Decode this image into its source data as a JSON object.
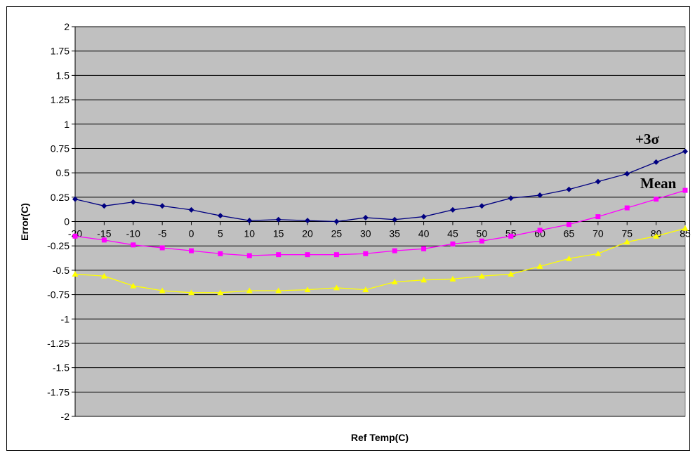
{
  "chart_data": {
    "type": "line",
    "xlabel": "Ref Temp(C)",
    "ylabel": "Error(C)",
    "ylim": [
      -2,
      2
    ],
    "yticks": [
      "2",
      "1.75",
      "1.5",
      "1.25",
      "1",
      "0.75",
      "0.5",
      "0.25",
      "0",
      "-0.25",
      "-0.5",
      "-0.75",
      "-1",
      "-1.25",
      "-1.5",
      "-1.75",
      "-2"
    ],
    "x": [
      "-20",
      "-15",
      "-10",
      "-5",
      "0",
      "5",
      "10",
      "15",
      "20",
      "25",
      "30",
      "35",
      "40",
      "45",
      "50",
      "55",
      "60",
      "65",
      "70",
      "75",
      "80",
      "85"
    ],
    "grid": true,
    "plot_background": "#c0c0c0",
    "series": [
      {
        "color": "#000080",
        "marker": "diamond",
        "values": [
          0.23,
          0.16,
          0.2,
          0.16,
          0.12,
          0.06,
          0.01,
          0.02,
          0.01,
          0.0,
          0.04,
          0.02,
          0.05,
          0.12,
          0.16,
          0.24,
          0.27,
          0.33,
          0.41,
          0.49,
          0.61,
          0.72
        ]
      },
      {
        "color": "#ff00ff",
        "marker": "square",
        "values": [
          -0.15,
          -0.19,
          -0.24,
          -0.27,
          -0.3,
          -0.33,
          -0.35,
          -0.34,
          -0.34,
          -0.34,
          -0.33,
          -0.3,
          -0.28,
          -0.23,
          -0.2,
          -0.15,
          -0.09,
          -0.03,
          0.05,
          0.14,
          0.23,
          0.32
        ]
      },
      {
        "color": "#ffff00",
        "marker": "triangle",
        "values": [
          -0.54,
          -0.56,
          -0.66,
          -0.71,
          -0.73,
          -0.73,
          -0.71,
          -0.71,
          -0.7,
          -0.68,
          -0.7,
          -0.62,
          -0.6,
          -0.59,
          -0.56,
          -0.54,
          -0.46,
          -0.38,
          -0.33,
          -0.21,
          -0.15,
          -0.07
        ]
      }
    ],
    "annotations": [
      {
        "text": "+3σ"
      },
      {
        "text": "Mean"
      }
    ]
  }
}
